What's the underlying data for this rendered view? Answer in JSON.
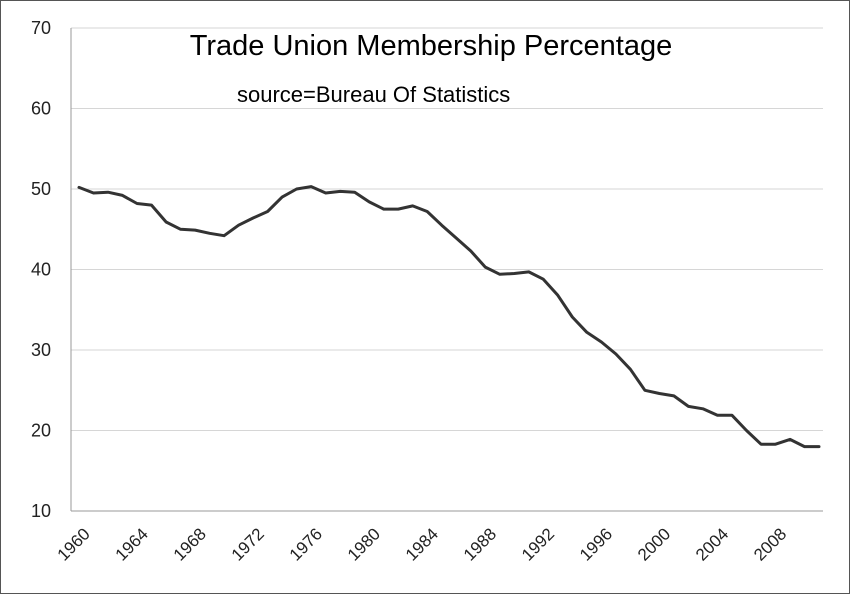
{
  "chart_data": {
    "type": "line",
    "title": "Trade Union Membership Percentage",
    "subtitle": "source=Bureau Of Statistics",
    "xlabel": "",
    "ylabel": "",
    "ylim": [
      10,
      70
    ],
    "yticks": [
      10,
      20,
      30,
      40,
      50,
      60,
      70
    ],
    "xticks": [
      1960,
      1964,
      1968,
      1972,
      1976,
      1980,
      1984,
      1988,
      1992,
      1996,
      2000,
      2004,
      2008
    ],
    "xlim": [
      1960,
      2011
    ],
    "grid": true,
    "legend": "none",
    "series_color": "#333333",
    "x": [
      1960,
      1961,
      1962,
      1963,
      1964,
      1965,
      1966,
      1967,
      1968,
      1969,
      1970,
      1971,
      1972,
      1973,
      1974,
      1975,
      1976,
      1977,
      1978,
      1979,
      1980,
      1981,
      1982,
      1983,
      1984,
      1985,
      1986,
      1987,
      1988,
      1989,
      1990,
      1991,
      1992,
      1993,
      1994,
      1995,
      1996,
      1997,
      1998,
      1999,
      2000,
      2001,
      2002,
      2003,
      2004,
      2005,
      2006,
      2007,
      2008,
      2009,
      2010,
      2011
    ],
    "series": [
      {
        "values": [
          50.2,
          49.5,
          49.6,
          49.2,
          48.2,
          48.0,
          45.9,
          45.0,
          44.9,
          44.5,
          44.2,
          45.5,
          46.4,
          47.2,
          49.0,
          50.0,
          50.3,
          49.5,
          49.7,
          49.6,
          48.4,
          47.5,
          47.5,
          47.9,
          47.2,
          45.5,
          43.9,
          42.3,
          40.3,
          39.4,
          39.5,
          39.7,
          38.8,
          36.8,
          34.1,
          32.2,
          31.0,
          29.5,
          27.6,
          25.0,
          24.6,
          24.3,
          23.0,
          22.7,
          21.9,
          21.9,
          20.0,
          18.3,
          18.3,
          18.9,
          18.0,
          18.0
        ]
      }
    ]
  }
}
